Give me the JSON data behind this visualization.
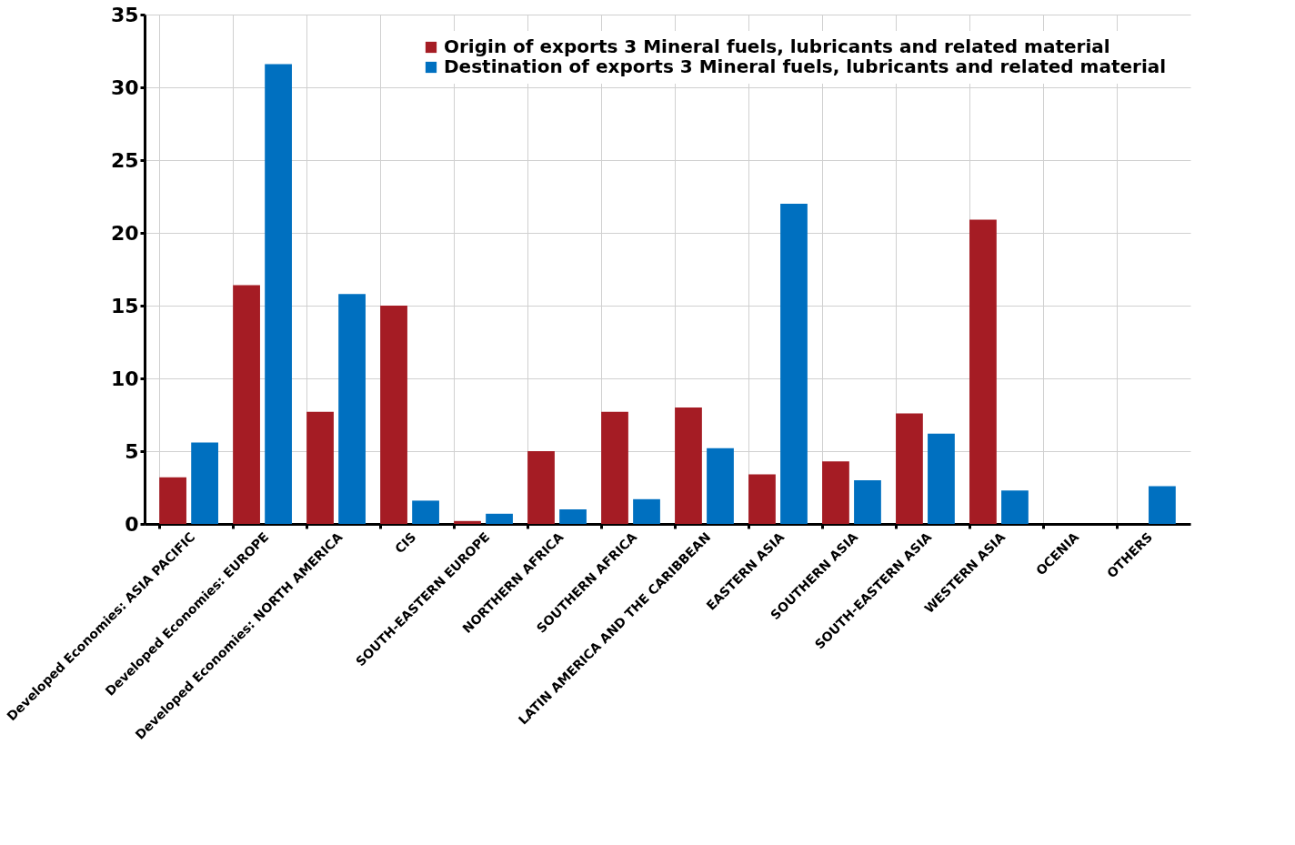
{
  "chart_data": {
    "type": "bar",
    "categories": [
      "Developed Economies: ASIA PACIFIC",
      "Developed Economies: EUROPE",
      "Developed Economies: NORTH AMERICA",
      "CIS",
      "SOUTH-EASTERN EUROPE",
      "NORTHERN AFRICA",
      "SOUTHERN AFRICA",
      "LATIN AMERICA AND THE CARIBBEAN",
      "EASTERN ASIA",
      "SOUTHERN ASIA",
      "SOUTH-EASTERN ASIA",
      "WESTERN ASIA",
      "OCENIA",
      "OTHERS"
    ],
    "series": [
      {
        "name": "Origin of exports 3 Mineral fuels, lubricants and related material",
        "color": "#a51c24",
        "values": [
          3.2,
          16.4,
          7.7,
          15.0,
          0.2,
          5.0,
          7.7,
          8.0,
          3.4,
          4.3,
          7.6,
          20.9,
          0,
          0
        ]
      },
      {
        "name": "Destination of exports 3 Mineral fuels, lubricants and related material",
        "color": "#0070c0",
        "values": [
          5.6,
          31.6,
          15.8,
          1.6,
          0.7,
          1.0,
          1.7,
          5.2,
          22.0,
          3.0,
          6.2,
          2.3,
          0,
          2.6
        ]
      }
    ],
    "ylim": [
      0,
      35
    ],
    "yticks": [
      0,
      5,
      10,
      15,
      20,
      25,
      30,
      35
    ],
    "grid": true,
    "legend": "top right"
  }
}
